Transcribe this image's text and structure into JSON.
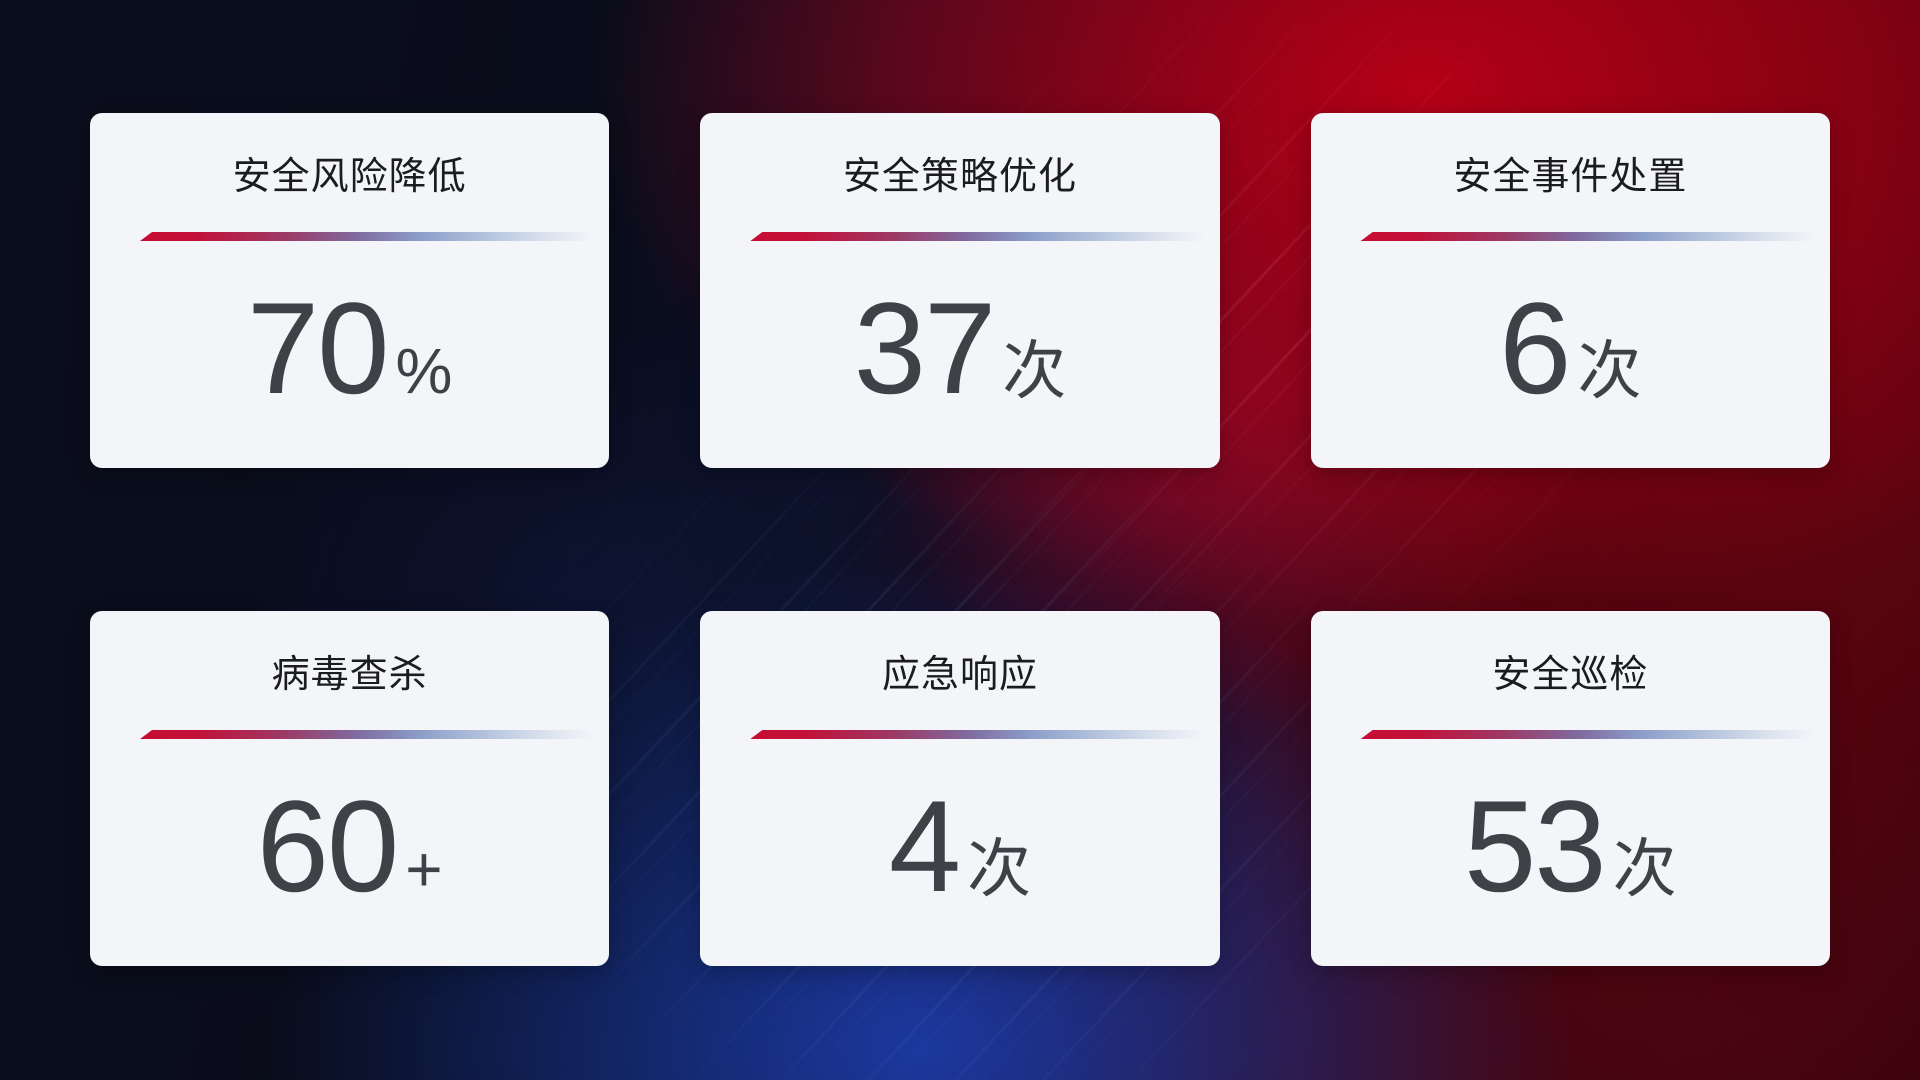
{
  "dashboard": {
    "cards": [
      {
        "title": "安全风险降低",
        "value": "70",
        "unit": "%"
      },
      {
        "title": "安全策略优化",
        "value": "37",
        "unit": "次"
      },
      {
        "title": "安全事件处置",
        "value": "6",
        "unit": "次"
      },
      {
        "title": "病毒查杀",
        "value": "60",
        "unit": "+"
      },
      {
        "title": "应急响应",
        "value": "4",
        "unit": "次"
      },
      {
        "title": "安全巡检",
        "value": "53",
        "unit": "次"
      }
    ],
    "colors": {
      "card_background": "#f4f5f9",
      "title_color": "#1b1c20",
      "value_color": "#404147",
      "divider_gradient_start": "#c60e33",
      "divider_gradient_mid": "#7f6ba0",
      "divider_gradient_end": "#d7dfec",
      "background_red": "#9e0212",
      "background_blue": "#1b3dac",
      "background_dark": "#0b0e1d"
    }
  }
}
